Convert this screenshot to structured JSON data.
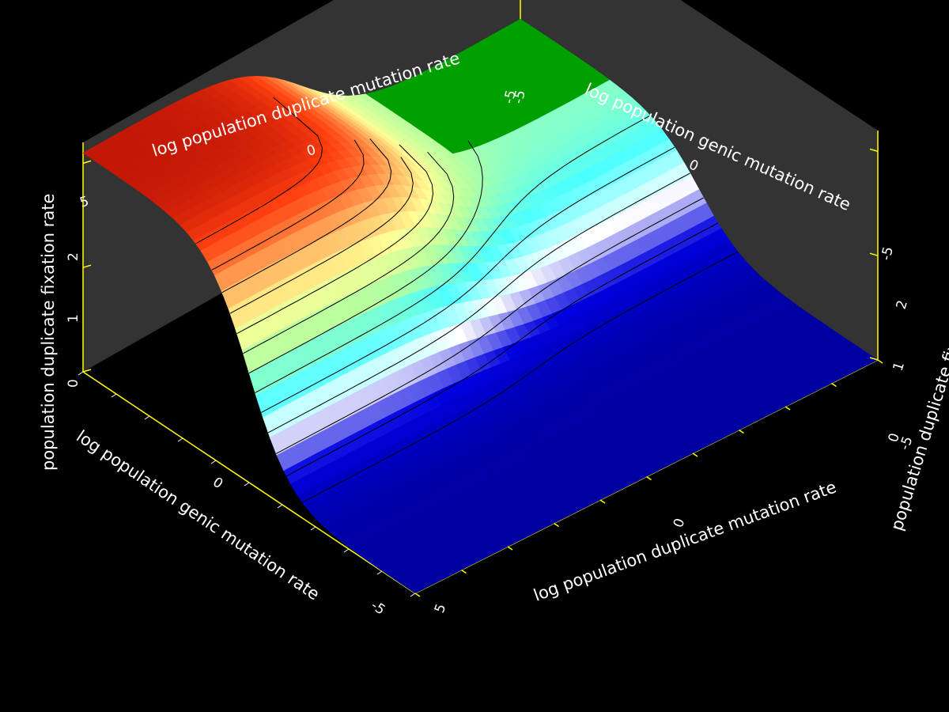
{
  "chart_data": {
    "type": "surface",
    "title": "",
    "x_axis": {
      "label": "log population duplicate mutation rate",
      "range": [
        -5,
        5
      ],
      "tick_labels": [
        "5",
        "0",
        "-5"
      ]
    },
    "y_axis": {
      "label": "log population genic mutation rate",
      "range": [
        -5,
        5
      ],
      "tick_labels": [
        "-5",
        "0",
        "5"
      ]
    },
    "z_axis": {
      "label": "population duplicate fixation rate",
      "range": [
        0,
        2.2
      ],
      "tick_labels": [
        "0",
        "1",
        "2"
      ]
    },
    "contour_levels": [
      0.15,
      0.3,
      0.45,
      0.6,
      0.75,
      0.9,
      1.05,
      1.2,
      1.35,
      1.5,
      1.65,
      1.8,
      1.95
    ],
    "surface_samples": {
      "description_of_grid": "z values on an 11x11 grid, rows = log genic mutation rate from -5 to 5, columns = log duplicate mutation rate from -5 to 5",
      "corner_values": {
        "genic_-5_duplicate_-5": 0.0,
        "genic_-5_duplicate_5": 0.0,
        "genic_5_duplicate_-5": 1.0,
        "genic_5_duplicate_5": 2.1
      }
    },
    "colormap": [
      "#0000a0",
      "#0000e0",
      "#ffffff",
      "#4cffff",
      "#b4ffa0",
      "#ffff96",
      "#ffb060",
      "#ff4010",
      "#a00000"
    ],
    "floor_color": "#0000a8",
    "plateau_color": "#00a000",
    "wall_color": "#333333",
    "frame_color": "#ffff00",
    "background": "#000000",
    "grid": false,
    "legend": "none"
  }
}
